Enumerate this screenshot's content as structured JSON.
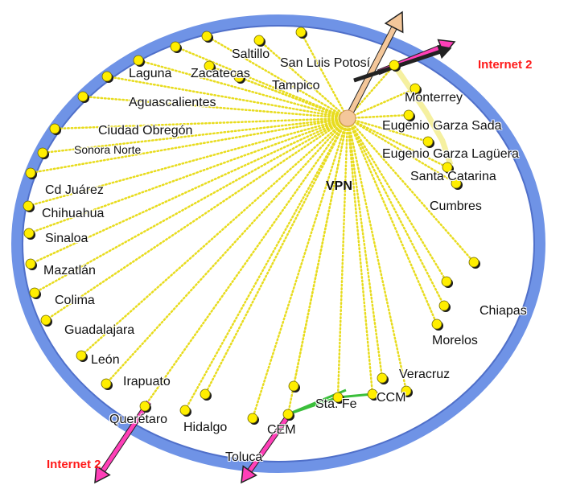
{
  "diagram": {
    "hub_label": "VPN",
    "internet_labels": [
      "Internet 2",
      "Internet 2"
    ],
    "colors": {
      "ring": "#6f93e6",
      "ring_inner": "#5b7fd6",
      "spoke": "#f2ea2a",
      "node": "#ffee00",
      "hub": "#f4c79a",
      "arrow_magenta": "#ff3fb8",
      "arrow_peach": "#f4c79a",
      "link_green": "#3bbf3b",
      "internet_text": "#ff1a1a"
    },
    "sites": [
      "Saltillo",
      "San Luis Potosí",
      "Tampico",
      "Laguna",
      "Zacatecas",
      "Aguascalientes",
      "Ciudad Obregón",
      "Sonora Norte",
      "Cd Juárez",
      "Chihuahua",
      "Sinaloa",
      "Mazatlán",
      "Colima",
      "Guadalajara",
      "León",
      "Irapuato",
      "Querétaro",
      "Hidalgo",
      "Toluca",
      "CEM",
      "Sta. Fe",
      "CCM",
      "Veracruz",
      "Morelos",
      "Chiapas",
      "Cumbres",
      "Santa Catarina",
      "Eugenio Garza Lagüera",
      "Eugenio Garza Sada",
      "Monterrey"
    ]
  }
}
